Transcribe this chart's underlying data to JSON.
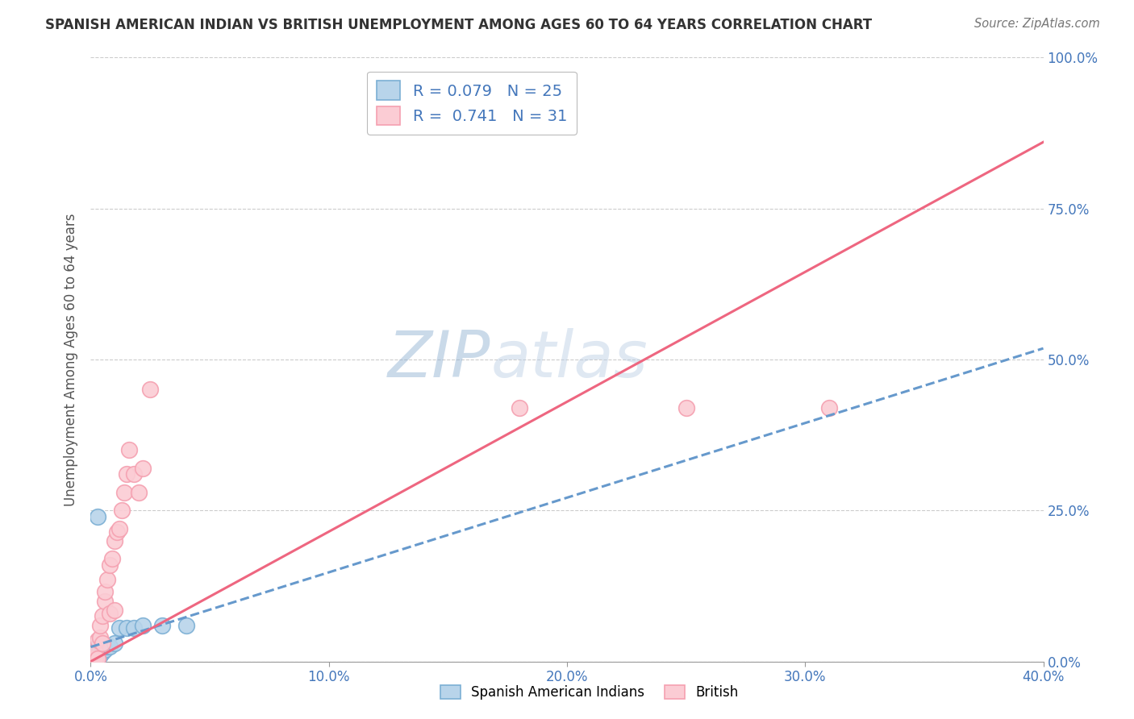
{
  "title": "SPANISH AMERICAN INDIAN VS BRITISH UNEMPLOYMENT AMONG AGES 60 TO 64 YEARS CORRELATION CHART",
  "source": "Source: ZipAtlas.com",
  "ylabel": "Unemployment Among Ages 60 to 64 years",
  "watermark_zip": "ZIP",
  "watermark_atlas": "atlas",
  "legend_label1": "Spanish American Indians",
  "legend_label2": "British",
  "r1": "0.079",
  "n1": "25",
  "r2": "0.741",
  "n2": "31",
  "blue_dot_color": "#7BAFD4",
  "blue_dot_fill": "#B8D4EA",
  "pink_dot_color": "#F5A0B0",
  "pink_dot_fill": "#FBCCD4",
  "trend_blue_color": "#6699CC",
  "trend_pink_color": "#EE6680",
  "xlim": [
    0.0,
    0.4
  ],
  "ylim": [
    0.0,
    1.0
  ],
  "xticks": [
    0.0,
    0.1,
    0.2,
    0.3,
    0.4
  ],
  "xtick_labels": [
    "0.0%",
    "10.0%",
    "20.0%",
    "30.0%",
    "40.0%"
  ],
  "yticks": [
    0.0,
    0.25,
    0.5,
    0.75,
    1.0
  ],
  "ytick_labels": [
    "0.0%",
    "25.0%",
    "50.0%",
    "75.0%",
    "100.0%"
  ],
  "blue_x": [
    0.001,
    0.001,
    0.001,
    0.002,
    0.002,
    0.002,
    0.003,
    0.003,
    0.003,
    0.004,
    0.004,
    0.005,
    0.005,
    0.006,
    0.007,
    0.008,
    0.01,
    0.012,
    0.015,
    0.018,
    0.022,
    0.03,
    0.04,
    0.003,
    0.003
  ],
  "blue_y": [
    0.002,
    0.006,
    0.01,
    0.005,
    0.012,
    0.02,
    0.005,
    0.015,
    0.025,
    0.01,
    0.02,
    0.015,
    0.025,
    0.02,
    0.025,
    0.025,
    0.03,
    0.055,
    0.055,
    0.055,
    0.06,
    0.06,
    0.06,
    0.24,
    0.005
  ],
  "pink_x": [
    0.001,
    0.002,
    0.002,
    0.003,
    0.003,
    0.004,
    0.004,
    0.005,
    0.005,
    0.006,
    0.006,
    0.007,
    0.008,
    0.008,
    0.009,
    0.01,
    0.01,
    0.011,
    0.012,
    0.013,
    0.014,
    0.015,
    0.016,
    0.018,
    0.02,
    0.022,
    0.025,
    0.18,
    0.25,
    0.31,
    0.18
  ],
  "pink_y": [
    0.005,
    0.003,
    0.015,
    0.005,
    0.035,
    0.04,
    0.06,
    0.03,
    0.075,
    0.1,
    0.115,
    0.135,
    0.16,
    0.08,
    0.17,
    0.085,
    0.2,
    0.215,
    0.22,
    0.25,
    0.28,
    0.31,
    0.35,
    0.31,
    0.28,
    0.32,
    0.45,
    0.42,
    0.42,
    0.42,
    0.9
  ],
  "trend_blue_intercept": 0.03,
  "trend_blue_slope": 0.055,
  "trend_pink_intercept": 0.0,
  "trend_pink_slope": 2.3
}
